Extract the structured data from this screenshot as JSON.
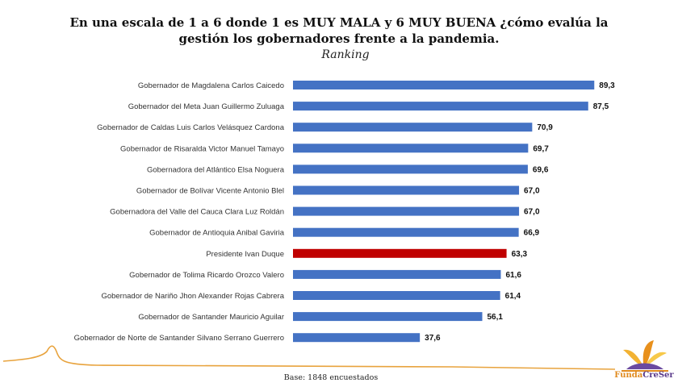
{
  "header": {
    "title_line1": "En una escala de 1 a 6 donde 1 es MUY MALA y 6 MUY BUENA ¿cómo evalúa la",
    "title_line2": "gestión los gobernadores frente a la pandemia.",
    "subtitle": "Ranking"
  },
  "footer": {
    "base": "Base: 1848 encuestados"
  },
  "logo": {
    "text_part1": "Funda",
    "text_part2": "CreSer"
  },
  "colors": {
    "bar_default": "#4472c4",
    "bar_highlight": "#c00000",
    "curve": "#e8a33d"
  },
  "chart_data": {
    "type": "bar",
    "orientation": "horizontal",
    "categories": [
      "Gobernador de Magdalena Carlos Caicedo",
      "Gobernador del Meta Juan Guillermo Zuluaga",
      "Gobernador de Caldas Luis Carlos Velásquez Cardona",
      "Gobernador de Risaralda Victor Manuel Tamayo",
      "Gobernadora del Atlántico Elsa Noguera",
      "Gobernador de Bolívar Vicente Antonio Blel",
      "Gobernadora del Valle del Cauca Clara Luz Roldán",
      "Gobernador de Antioquia Anibal Gaviria",
      "Presidente Ivan Duque",
      "Gobernador de Tolima Ricardo Orozco Valero",
      "Gobernador de Nariño Jhon Alexander Rojas Cabrera",
      "Gobernador de Santander Mauricio Aguilar",
      "Gobernador de Norte de Santander Silvano Serrano Guerrero"
    ],
    "values": [
      89.3,
      87.5,
      70.9,
      69.7,
      69.6,
      67.0,
      67.0,
      66.9,
      63.3,
      61.6,
      61.4,
      56.1,
      37.6
    ],
    "value_labels": [
      "89,3",
      "87,5",
      "70,9",
      "69,7",
      "69,6",
      "67,0",
      "67,0",
      "66,9",
      "63,3",
      "61,6",
      "61,4",
      "56,1",
      "37,6"
    ],
    "highlight_index": 8,
    "xlim": [
      0,
      100
    ],
    "grid": false,
    "legend": "none"
  }
}
